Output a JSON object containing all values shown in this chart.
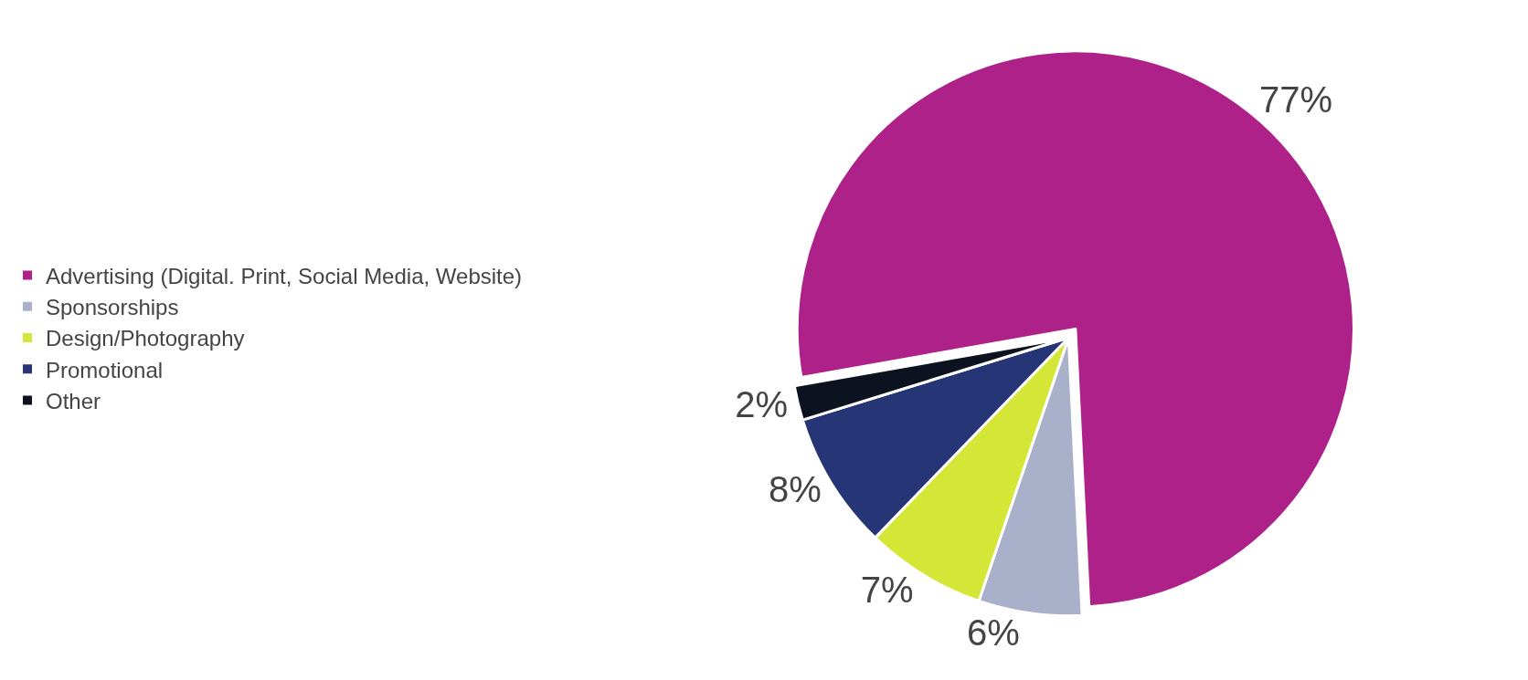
{
  "chart_data": {
    "type": "pie",
    "categories": [
      "Advertising (Digital. Print, Social Media, Website)",
      "Sponsorships",
      "Design/Photography",
      "Promotional",
      "Other"
    ],
    "values": [
      77,
      6,
      7,
      8,
      2
    ],
    "colors": [
      "#ad2189",
      "#a9b0c9",
      "#d4e636",
      "#263576",
      "#0d1220"
    ],
    "value_labels": [
      "77%",
      "6%",
      "7%",
      "8%",
      "2%"
    ],
    "legend": "left"
  }
}
